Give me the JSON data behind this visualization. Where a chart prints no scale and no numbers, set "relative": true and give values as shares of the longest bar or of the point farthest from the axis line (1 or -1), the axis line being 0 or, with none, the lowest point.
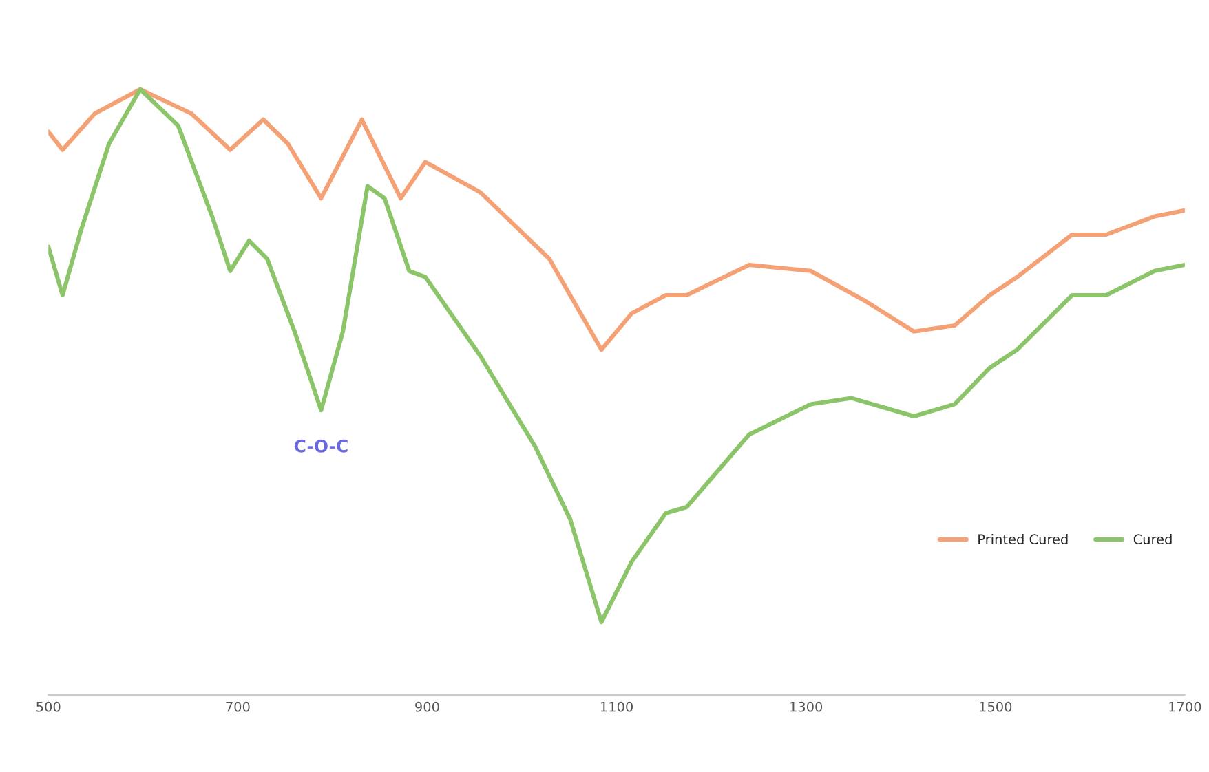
{
  "chart_data": {
    "type": "line",
    "relative": true,
    "tick_labels": "x",
    "grid": false,
    "legend": "right",
    "marker": "none",
    "line_style": "solid",
    "xlim": [
      500,
      1700
    ],
    "xticks": [
      500,
      700,
      900,
      1100,
      1300,
      1500,
      1700
    ],
    "annotations": [
      {
        "text": "C-O-C",
        "x": 788,
        "y": 0.47
      }
    ],
    "series": [
      {
        "name": "Printed Cured",
        "color": "#f4a175",
        "x": [
          500,
          515,
          549,
          597,
          651,
          692,
          727,
          753,
          788,
          831,
          872,
          898,
          956,
          1029,
          1084,
          1116,
          1152,
          1174,
          1240,
          1305,
          1363,
          1414,
          1457,
          1494,
          1523,
          1581,
          1617,
          1668,
          1700
        ],
        "values": [
          0.93,
          0.9,
          0.96,
          1,
          0.96,
          0.9,
          0.95,
          0.91,
          0.82,
          0.95,
          0.82,
          0.88,
          0.83,
          0.72,
          0.57,
          0.63,
          0.66,
          0.66,
          0.71,
          0.7,
          0.65,
          0.6,
          0.61,
          0.66,
          0.69,
          0.76,
          0.76,
          0.79,
          0.8
        ]
      },
      {
        "name": "Cured",
        "color": "#8cc46a",
        "x": [
          500,
          515,
          535,
          564,
          597,
          637,
          673,
          692,
          712,
          731,
          760,
          788,
          811,
          837,
          855,
          881,
          898,
          956,
          1014,
          1051,
          1084,
          1116,
          1152,
          1174,
          1240,
          1305,
          1348,
          1414,
          1457,
          1494,
          1523,
          1581,
          1617,
          1668,
          1700
        ],
        "values": [
          0.74,
          0.66,
          0.77,
          0.91,
          1,
          0.94,
          0.79,
          0.7,
          0.75,
          0.72,
          0.6,
          0.47,
          0.6,
          0.84,
          0.82,
          0.7,
          0.69,
          0.56,
          0.41,
          0.29,
          0.12,
          0.22,
          0.3,
          0.31,
          0.43,
          0.48,
          0.49,
          0.46,
          0.48,
          0.54,
          0.57,
          0.66,
          0.66,
          0.7,
          0.71
        ]
      }
    ]
  }
}
